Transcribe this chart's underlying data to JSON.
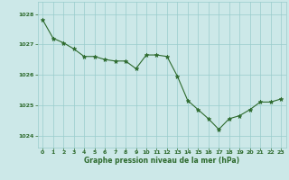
{
  "x": [
    0,
    1,
    2,
    3,
    4,
    5,
    6,
    7,
    8,
    9,
    10,
    11,
    12,
    13,
    14,
    15,
    16,
    17,
    18,
    19,
    20,
    21,
    22,
    23
  ],
  "y": [
    1027.8,
    1027.2,
    1027.05,
    1026.85,
    1026.6,
    1026.6,
    1026.5,
    1026.45,
    1026.45,
    1026.2,
    1026.65,
    1026.65,
    1026.6,
    1025.95,
    1025.15,
    1024.85,
    1024.55,
    1024.2,
    1024.55,
    1024.65,
    1024.85,
    1025.1,
    1025.1,
    1025.2
  ],
  "line_color": "#2d6a2d",
  "marker": "*",
  "marker_color": "#2d6a2d",
  "bg_color": "#cce8e8",
  "grid_color": "#99cccc",
  "xlabel": "Graphe pression niveau de la mer (hPa)",
  "xlabel_color": "#2d6a2d",
  "tick_color": "#2d6a2d",
  "ylim": [
    1023.6,
    1028.4
  ],
  "yticks": [
    1024,
    1025,
    1026,
    1027,
    1028
  ],
  "xlim": [
    -0.5,
    23.5
  ],
  "xticks": [
    0,
    1,
    2,
    3,
    4,
    5,
    6,
    7,
    8,
    9,
    10,
    11,
    12,
    13,
    14,
    15,
    16,
    17,
    18,
    19,
    20,
    21,
    22,
    23
  ]
}
